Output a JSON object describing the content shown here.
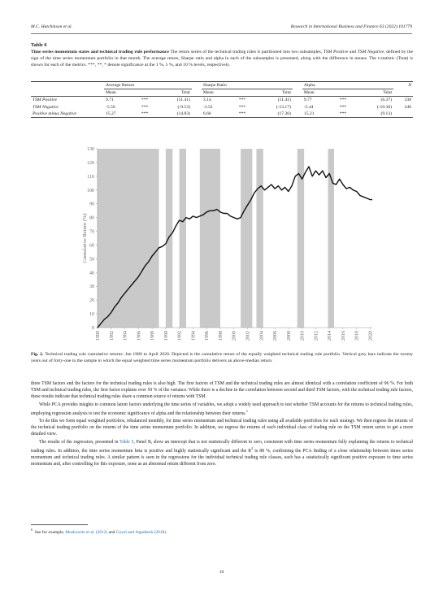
{
  "header": {
    "authors": "M.C. Hutchinson et al.",
    "journal": "Research in International Business and Finance 63 (2022) 101779"
  },
  "table": {
    "label": "Table 6",
    "title": "Time series momentum states and technical trading rule performance",
    "caption_pre": "The return series of the technical trading rules is partitioned into two subsamples, ",
    "caption_tsm_pos": "TSM Positive",
    "caption_mid1": " and ",
    "caption_tsm_neg": "TSM Negative",
    "caption_post": ", defined by the sign of the time series momentum portfolio in that month. The average return, Sharpe ratio and alpha in each of the subsamples is presented, along with the difference in means. The t-statistic (Tstat) is shown for each of the metrics. ***, **, * denote significance at the 1 %, 5 %, and 10 % levels, respectively.",
    "groups": [
      "Average Return",
      "Sharpe Ratio",
      "Alpha",
      "N"
    ],
    "subheaders": [
      "Mean",
      "Tstat"
    ],
    "rows": [
      {
        "label": "TSM Positive",
        "ar_mean": "9.71",
        "ar_sig": "***",
        "ar_t": "(11.41)",
        "sr_mean": "3.14",
        "sr_sig": "***",
        "sr_t": "(11.41)",
        "al_mean": "9.77",
        "al_sig": "***",
        "al_t": "(6.37)",
        "n": "238"
      },
      {
        "label": "TSM Negative",
        "ar_mean": "-5.56",
        "ar_sig": "***",
        "ar_t": "(-9.53)",
        "sr_mean": "-3.52",
        "sr_sig": "***",
        "sr_t": "(-13.17)",
        "al_mean": "-5.44",
        "al_sig": "***",
        "al_t": "(-10.30)",
        "n": "246"
      },
      {
        "label": "Positive minus Negative",
        "ar_mean": "15.27",
        "ar_sig": "***",
        "ar_t": "(14.83)",
        "sr_mean": "6.66",
        "sr_sig": "***",
        "sr_t": "(17.36)",
        "al_mean": "15.21",
        "al_sig": "***",
        "al_t": "(9.13)",
        "n": ""
      }
    ]
  },
  "chart_data": {
    "type": "line",
    "ylabel": "Cumulative Return (%)",
    "ylim": [
      0,
      130
    ],
    "yticks": [
      "0",
      "10",
      "20",
      "30",
      "40",
      "50",
      "60",
      "70",
      "80",
      "90",
      "100",
      "110",
      "120",
      "130"
    ],
    "xlim": [
      1980,
      2020.3
    ],
    "xticks": [
      "1980",
      "1982",
      "1984",
      "1986",
      "1988",
      "1990",
      "1992",
      "1994",
      "1996",
      "1998",
      "2000",
      "2002",
      "2004",
      "2006",
      "2008",
      "2010",
      "2012",
      "2014",
      "2016",
      "2018",
      "2020"
    ],
    "recession_bands": [
      [
        1980,
        1989
      ],
      [
        1990,
        1991
      ],
      [
        1992,
        1993
      ],
      [
        1995,
        1998
      ],
      [
        2001,
        2002.7
      ],
      [
        2003.3,
        2004.3
      ],
      [
        2009.3,
        2010.3
      ],
      [
        2013.8,
        2014.7
      ]
    ],
    "band_color": "#c9c9c9",
    "line_color": "#111111",
    "series": [
      {
        "x": [
          1980.0,
          1980.5,
          1981.0,
          1981.5,
          1982.0,
          1982.5,
          1983.0,
          1983.5,
          1984.0,
          1984.5,
          1985.0,
          1985.5,
          1986.0,
          1986.5,
          1987.0,
          1987.5,
          1988.0,
          1988.5,
          1989.0,
          1989.5,
          1990.0,
          1990.5,
          1991.0,
          1991.5,
          1992.0,
          1992.5,
          1993.0,
          1993.5,
          1994.0,
          1994.5,
          1995.0,
          1995.5,
          1996.0,
          1996.5,
          1997.0,
          1997.5,
          1998.0,
          1998.5,
          1999.0,
          1999.5,
          2000.0,
          2000.5,
          2001.0,
          2001.5,
          2002.0,
          2002.5,
          2003.0,
          2003.5,
          2004.0,
          2004.5,
          2005.0,
          2005.5,
          2006.0,
          2006.5,
          2007.0,
          2007.5,
          2008.0,
          2008.5,
          2009.0,
          2009.5,
          2010.0,
          2010.5,
          2011.0,
          2011.5,
          2012.0,
          2012.5,
          2013.0,
          2013.5,
          2014.0,
          2014.5,
          2015.0,
          2015.5,
          2016.0,
          2016.5,
          2017.0,
          2017.5,
          2018.0,
          2018.5,
          2019.0,
          2019.5,
          2020.0,
          2020.3
        ],
        "y": [
          0,
          3,
          6,
          8,
          11,
          15,
          18,
          22,
          25,
          28,
          31,
          34,
          37,
          41,
          45,
          48,
          52,
          55,
          58,
          59,
          61,
          66,
          69,
          74,
          78,
          77,
          80,
          79,
          81,
          80,
          81,
          82,
          84,
          85,
          85,
          86,
          84,
          83,
          83,
          81,
          80,
          79,
          80,
          85,
          89,
          93,
          98,
          101,
          103,
          100,
          102,
          104,
          101,
          103,
          100,
          102,
          99,
          103,
          110,
          112,
          108,
          113,
          117,
          110,
          114,
          111,
          114,
          109,
          112,
          105,
          104,
          108,
          104,
          101,
          102,
          100,
          99,
          96,
          95,
          94,
          93,
          93
        ]
      }
    ]
  },
  "figure": {
    "label": "Fig. 2.",
    "caption": "Technical trading rule cumulative returns: Jan 1980 to April 2020. Depicted is the cumulative return of the equally weighted technical trading rule portfolio. Vertical grey bars indicate the twenty years out of forty-one in the sample in which the equal weighted time series momentum portfolio delivers an above-median return."
  },
  "body": {
    "p1": "three TSM factors and the factors for the technical trading rules is also high. The first factors of TSM and the technical trading rules are almost identical with a correlation coefficient of 96 %. For both TSM and technical trading rules, the first factor explains over 50 % of the variance. While there is a decline in the correlation between second and third TSM factors, with the technical trading rule factors, these results indicate that technical trading rules share a common source of returns with TSM.",
    "p2": "While PCA provides insights to common latent factors underlying the time series of variables, we adopt a widely used approach to test whether TSM accounts for the returns to technical trading rules, employing regression analysis to test the economic significance of alpha and the relationship between their returns.",
    "p2_fn": "6",
    "p3": "To do this we form equal weighted portfolios, rebalanced monthly, for time series momentum and technical trading rules using all available portfolios for each strategy. We then regress the returns of the technical trading portfolio on the returns of the time series momentum portfolio. In addition, we regress the returns of each individual class of trading rule on the TSM return series to get a more detailed view.",
    "p4_a": "The results of the regression, presented in ",
    "p4_link": "Table 5",
    "p4_b": ", Panel B, show an intercept that is not statistically different to zero, consistent with time series momentum fully explaining the returns to technical trading rules. In addition, the time series momentum beta is positive and highly statistically significant and the R",
    "p4_sup": "2",
    "p4_c": " is 88 %, confirming the PCA finding of a close relationship between times series momentum and technical trading rules. A similar pattern is seen in the regressions for the individual technical trading rule classes, each has a sstatistically significant positive exposure to time series momentum and, after controlling for this exposure, none as an abnormal return different from zero."
  },
  "footnote": {
    "num": "6",
    "pre": "See for example, ",
    "ref1": "Moskowitz et al. (2012)",
    "mid": " and ",
    "ref2": "Goyal and Jegadeesh (2018)",
    "post": "."
  },
  "page_number": "10"
}
